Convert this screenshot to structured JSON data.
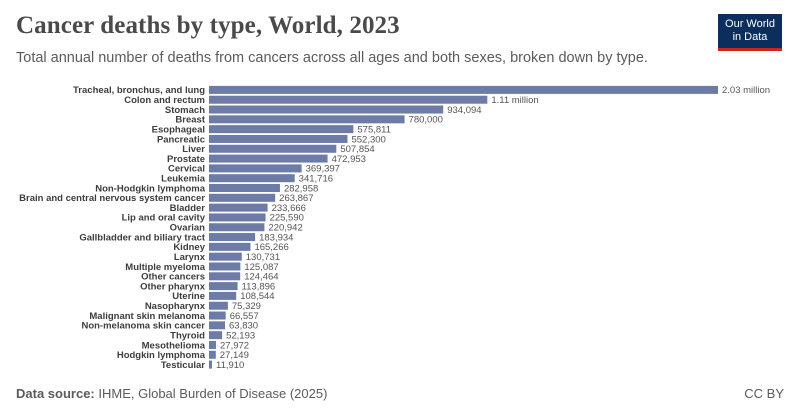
{
  "header": {
    "title": "Cancer deaths by type, World, 2023",
    "subtitle": "Total annual number of deaths from cancers across all ages and both sexes, broken down by type."
  },
  "logo": {
    "line1": "Our World",
    "line2": "in Data"
  },
  "footer": {
    "source_label": "Data source:",
    "source_text": "IHME, Global Burden of Disease (2025)",
    "license": "CC BY"
  },
  "colors": {
    "bar": "#6d7ca6",
    "label": "#3d3d3d",
    "value": "#555555"
  },
  "chart_data": {
    "type": "bar",
    "orientation": "horizontal",
    "title": "Cancer deaths by type, World, 2023",
    "categories": [
      "Tracheal, bronchus, and lung",
      "Colon and rectum",
      "Stomach",
      "Breast",
      "Esophageal",
      "Pancreatic",
      "Liver",
      "Prostate",
      "Cervical",
      "Leukemia",
      "Non-Hodgkin lymphoma",
      "Brain and central nervous system cancer",
      "Bladder",
      "Lip and oral cavity",
      "Ovarian",
      "Gallbladder and biliary tract",
      "Kidney",
      "Larynx",
      "Multiple myeloma",
      "Other cancers",
      "Other pharynx",
      "Uterine",
      "Nasopharynx",
      "Malignant skin melanoma",
      "Non-melanoma skin cancer",
      "Thyroid",
      "Mesothelioma",
      "Hodgkin lymphoma",
      "Testicular"
    ],
    "values": [
      2030000,
      1110000,
      934094,
      780000,
      575811,
      552300,
      507854,
      472953,
      369397,
      341716,
      282958,
      263867,
      233666,
      225590,
      220942,
      183934,
      165266,
      130731,
      125087,
      124464,
      113896,
      108544,
      75329,
      66557,
      63830,
      52193,
      27972,
      27149,
      11910
    ],
    "value_labels": [
      "2.03 million",
      "1.11 million",
      "934,094",
      "780,000",
      "575,811",
      "552,300",
      "507,854",
      "472,953",
      "369,397",
      "341,716",
      "282,958",
      "263,867",
      "233,666",
      "225,590",
      "220,942",
      "183,934",
      "165,266",
      "130,731",
      "125,087",
      "124,464",
      "113,896",
      "108,544",
      "75,329",
      "66,557",
      "63,830",
      "52,193",
      "27,972",
      "27,149",
      "11,910"
    ]
  }
}
